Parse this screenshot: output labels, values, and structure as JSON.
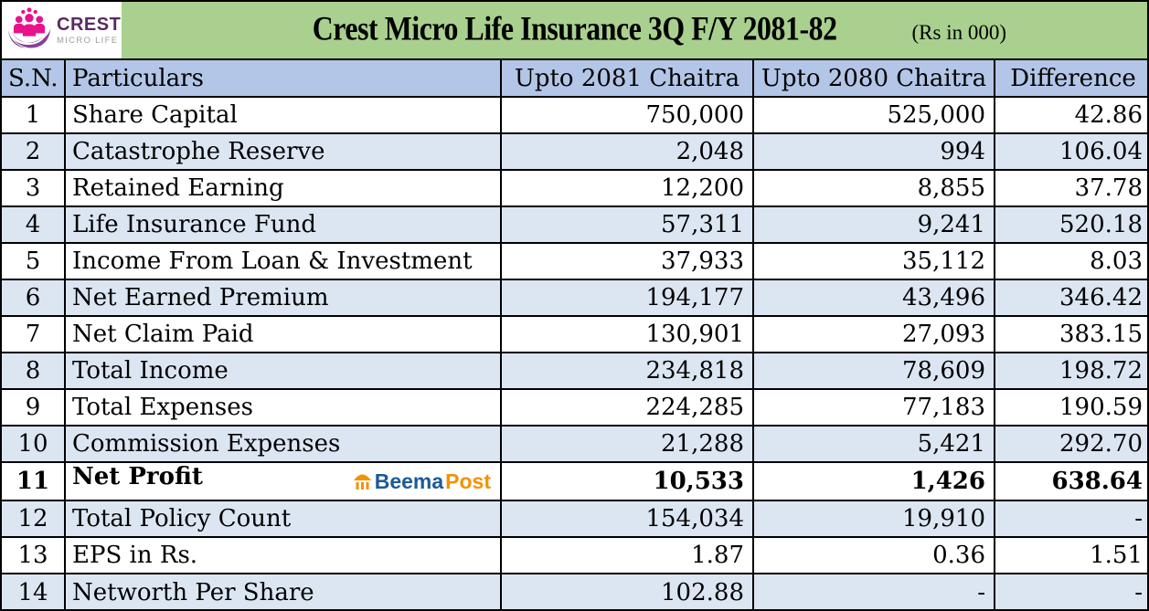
{
  "header": {
    "logo_brand": "CREST",
    "logo_sub": "MICRO LIFE",
    "title": "Crest Micro Life Insurance 3Q F/Y 2081-82",
    "unit_note": "(Rs in 000)"
  },
  "watermark": {
    "beema": "Beema",
    "post": "Post"
  },
  "colors": {
    "title_band_green": "#a9d08e",
    "header_row_blue": "#b4c6e7",
    "alt_row_blue": "#dce6f2",
    "brand_purple": "#5a2a62",
    "brand_pink": "#e9118c",
    "brand_sub_gray": "#9d9d9d",
    "beema_blue": "#1d5a96",
    "beema_orange": "#f39200",
    "border_black": "#000000"
  },
  "chart_data": {
    "type": "table",
    "title": "Crest Micro Life Insurance 3Q F/Y 2081-82",
    "unit": "(Rs in 000)",
    "columns": [
      "S.N.",
      "Particulars",
      "Upto 2081 Chaitra",
      "Upto 2080 Chaitra",
      "Difference"
    ],
    "rows": [
      {
        "sn": "1",
        "particular": "Share Capital",
        "upto_2081_chaitra": "750,000",
        "upto_2080_chaitra": "525,000",
        "difference": "42.86",
        "bold": false,
        "watermark": false
      },
      {
        "sn": "2",
        "particular": "Catastrophe Reserve",
        "upto_2081_chaitra": "2,048",
        "upto_2080_chaitra": "994",
        "difference": "106.04",
        "bold": false,
        "watermark": false
      },
      {
        "sn": "3",
        "particular": "Retained Earning",
        "upto_2081_chaitra": "12,200",
        "upto_2080_chaitra": "8,855",
        "difference": "37.78",
        "bold": false,
        "watermark": false
      },
      {
        "sn": "4",
        "particular": "Life Insurance Fund",
        "upto_2081_chaitra": "57,311",
        "upto_2080_chaitra": "9,241",
        "difference": "520.18",
        "bold": false,
        "watermark": false
      },
      {
        "sn": "5",
        "particular": "Income From Loan & Investment",
        "upto_2081_chaitra": "37,933",
        "upto_2080_chaitra": "35,112",
        "difference": "8.03",
        "bold": false,
        "watermark": false
      },
      {
        "sn": "6",
        "particular": "Net Earned Premium",
        "upto_2081_chaitra": "194,177",
        "upto_2080_chaitra": "43,496",
        "difference": "346.42",
        "bold": false,
        "watermark": false
      },
      {
        "sn": "7",
        "particular": "Net Claim Paid",
        "upto_2081_chaitra": "130,901",
        "upto_2080_chaitra": "27,093",
        "difference": "383.15",
        "bold": false,
        "watermark": false
      },
      {
        "sn": "8",
        "particular": "Total Income",
        "upto_2081_chaitra": "234,818",
        "upto_2080_chaitra": "78,609",
        "difference": "198.72",
        "bold": false,
        "watermark": false
      },
      {
        "sn": "9",
        "particular": "Total Expenses",
        "upto_2081_chaitra": "224,285",
        "upto_2080_chaitra": "77,183",
        "difference": "190.59",
        "bold": false,
        "watermark": false
      },
      {
        "sn": "10",
        "particular": "Commission Expenses",
        "upto_2081_chaitra": "21,288",
        "upto_2080_chaitra": "5,421",
        "difference": "292.70",
        "bold": false,
        "watermark": false
      },
      {
        "sn": "11",
        "particular": "Net Profit",
        "upto_2081_chaitra": "10,533",
        "upto_2080_chaitra": "1,426",
        "difference": "638.64",
        "bold": true,
        "watermark": true
      },
      {
        "sn": "12",
        "particular": "Total Policy Count",
        "upto_2081_chaitra": "154,034",
        "upto_2080_chaitra": "19,910",
        "difference": "-",
        "bold": false,
        "watermark": false
      },
      {
        "sn": "13",
        "particular": "EPS in Rs.",
        "upto_2081_chaitra": "1.87",
        "upto_2080_chaitra": "0.36",
        "difference": "1.51",
        "bold": false,
        "watermark": false
      },
      {
        "sn": "14",
        "particular": "Networth Per Share",
        "upto_2081_chaitra": "102.88",
        "upto_2080_chaitra": "-",
        "difference": "-",
        "bold": false,
        "watermark": false
      }
    ]
  }
}
